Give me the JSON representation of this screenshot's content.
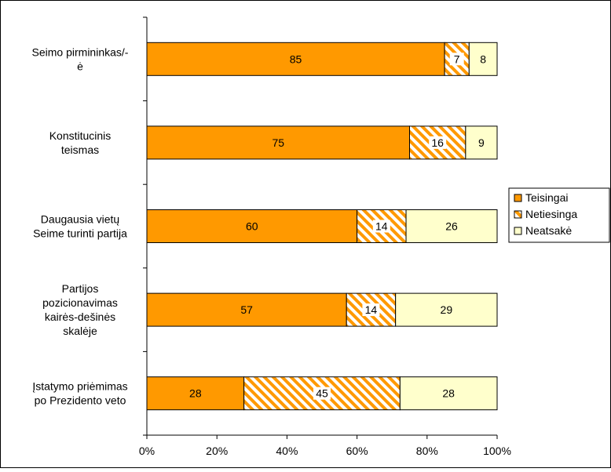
{
  "chart_data": {
    "type": "bar",
    "orientation": "horizontal",
    "stacked": "percent",
    "categories": [
      "Seimo pirmininkas/-ė",
      "Konstitucinis teismas",
      "Daugausia vietų Seime turinti partija",
      "Partijos pozicionavimas kairės-dešinės skalėje",
      "Įstatymo priėmimas po Prezidento veto"
    ],
    "category_lines": [
      [
        "Seimo pirmininkas/-",
        "ė"
      ],
      [
        "Konstitucinis",
        "teismas"
      ],
      [
        "Daugausia vietų",
        "Seime turinti partija"
      ],
      [
        "Partijos",
        "pozicionavimas",
        "kairės-dešinės",
        "skalėje"
      ],
      [
        "Įstatymo priėmimas",
        "po Prezidento veto"
      ]
    ],
    "series": [
      {
        "name": "Teisingai",
        "values": [
          85,
          75,
          60,
          57,
          28
        ],
        "color": "#ff9900",
        "pattern": "solid"
      },
      {
        "name": "Netiesinga",
        "values": [
          7,
          16,
          14,
          14,
          45
        ],
        "color": "#ff9900",
        "pattern": "diagonal-stripes"
      },
      {
        "name": "Neatsakė",
        "values": [
          8,
          9,
          26,
          29,
          28
        ],
        "color": "#ffffcc",
        "pattern": "solid"
      }
    ],
    "xlim": [
      0,
      100
    ],
    "xticks": [
      "0%",
      "20%",
      "40%",
      "60%",
      "80%",
      "100%"
    ],
    "title": "",
    "xlabel": "",
    "ylabel": "",
    "grid": false,
    "legend_position": "right"
  }
}
